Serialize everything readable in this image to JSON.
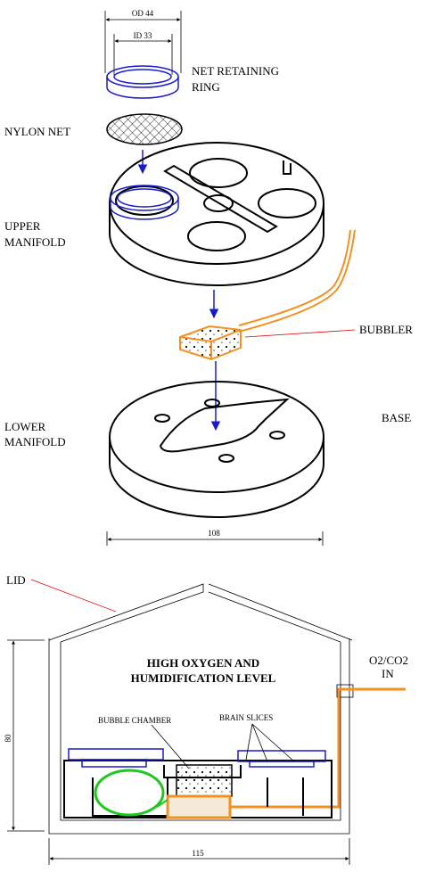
{
  "labels": {
    "od": "OD 44",
    "id": "ID 33",
    "net_retaining_ring": [
      "NET RETAINING",
      "RING"
    ],
    "nylon_net": "NYLON NET",
    "upper_manifold": [
      "UPPER",
      "MANIFOLD"
    ],
    "bubbler": "BUBBLER",
    "lower_manifold": [
      "LOWER",
      "MANIFOLD"
    ],
    "base": "BASE",
    "base_width": 108,
    "lid": "LID",
    "chamber_text": [
      "HIGH OXYGEN AND",
      "HUMIDIFICATION LEVEL"
    ],
    "gas_in": [
      "O2/CO2",
      "IN"
    ],
    "bubble_chamber": "BUBBLE CHAMBER",
    "brain_slices": "BRAIN SLICES",
    "height": 80,
    "width": 115
  }
}
